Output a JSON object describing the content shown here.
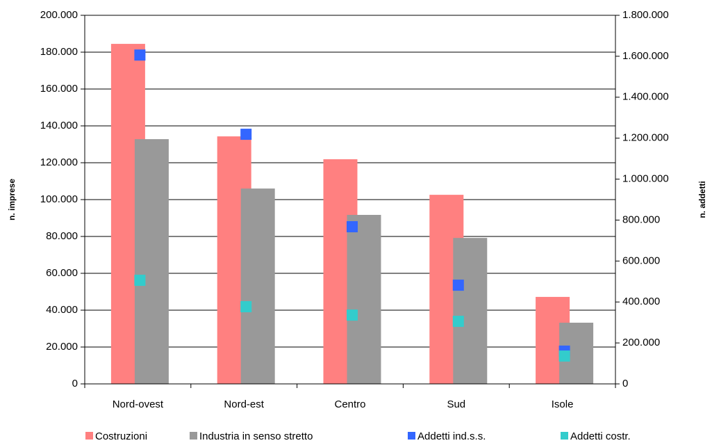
{
  "chart_data": {
    "type": "bar",
    "y_label": "n. imprese",
    "y2_label": "n. addetti",
    "categories": [
      "Nord-ovest",
      "Nord-est",
      "Centro",
      "Sud",
      "Isole"
    ],
    "series": [
      {
        "name": "Costruzioni",
        "color": "#ff8080",
        "type": "bar",
        "values": [
          184500,
          134300,
          121900,
          102600,
          47200
        ]
      },
      {
        "name": "Industria in senso stretto",
        "color": "#999999",
        "type": "bar",
        "values": [
          132800,
          106000,
          91700,
          79200,
          33200
        ]
      },
      {
        "name": "Addetti ind.s.s.",
        "color": "#3366ff",
        "type": "scatter",
        "axis": "y2",
        "values": [
          1606000,
          1219000,
          767500,
          482000,
          160000
        ]
      },
      {
        "name": "Addetti costr.",
        "color": "#33cccc",
        "type": "scatter",
        "axis": "y2",
        "values": [
          506000,
          377000,
          336000,
          305600,
          136000
        ]
      }
    ],
    "ylim": [
      0,
      200000
    ],
    "yticks": [
      0,
      {
        "value": 20000,
        "label": "20.000"
      },
      {
        "value": 40000,
        "label": "40.000"
      },
      {
        "value": 60000,
        "label": "60.000"
      },
      {
        "value": 80000,
        "label": "80.000"
      },
      {
        "value": 100000,
        "label": "100.000"
      },
      {
        "value": 120000,
        "label": "120.000"
      },
      {
        "value": 140000,
        "label": "140.000"
      },
      {
        "value": 160000,
        "label": "160.000"
      },
      {
        "value": 180000,
        "label": "180.000"
      },
      {
        "value": 200000,
        "label": "200.000"
      }
    ],
    "y2lim": [
      0,
      1800000
    ],
    "y2ticks": [
      0,
      {
        "value": 200000,
        "label": "200.000"
      },
      {
        "value": 400000,
        "label": "400.000"
      },
      {
        "value": 600000,
        "label": "600.000"
      },
      {
        "value": 800000,
        "label": "800.000"
      },
      {
        "value": 1000000,
        "label": "1.000.000"
      },
      {
        "value": 1200000,
        "label": "1.200.000"
      },
      {
        "value": 1400000,
        "label": "1.400.000"
      },
      {
        "value": 1600000,
        "label": "1.600.000"
      },
      {
        "value": 1800000,
        "label": "1.800.000"
      }
    ],
    "grid": true,
    "legend": "bottom"
  }
}
